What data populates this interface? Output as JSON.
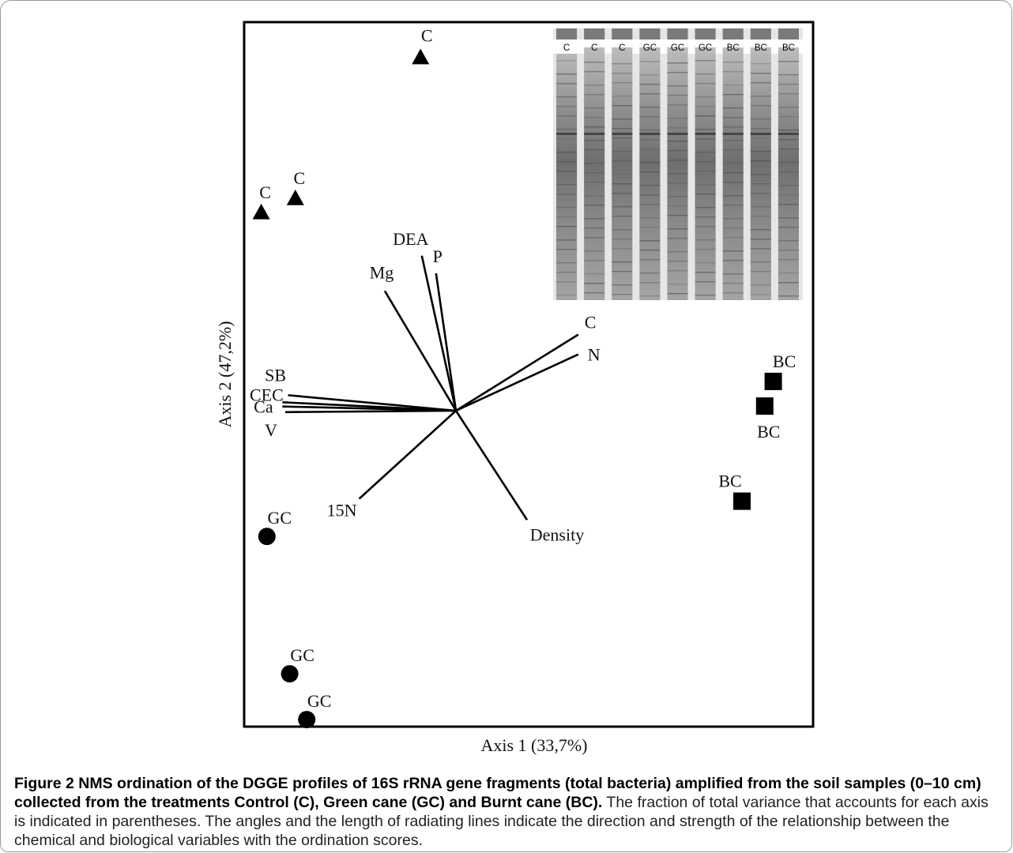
{
  "chart_data": {
    "type": "scatter",
    "xlabel": "Axis 1 (33,7%)",
    "ylabel": "Axis 2 (47,2%)",
    "points": [
      {
        "group": "C",
        "label": "C",
        "marker": "triangle",
        "x": 0.31,
        "y": 0.95
      },
      {
        "group": "C",
        "label": "C",
        "marker": "triangle",
        "x": 0.09,
        "y": 0.75
      },
      {
        "group": "C",
        "label": "C",
        "marker": "triangle",
        "x": 0.03,
        "y": 0.73
      },
      {
        "group": "BC",
        "label": "BC",
        "marker": "square",
        "x": 0.93,
        "y": 0.49
      },
      {
        "group": "BC",
        "label": "BC",
        "marker": "square",
        "x": 0.915,
        "y": 0.455
      },
      {
        "group": "BC",
        "label": "BC",
        "marker": "square",
        "x": 0.875,
        "y": 0.32
      },
      {
        "group": "GC",
        "label": "GC",
        "marker": "circle",
        "x": 0.04,
        "y": 0.27
      },
      {
        "group": "GC",
        "label": "GC",
        "marker": "circle",
        "x": 0.08,
        "y": 0.075
      },
      {
        "group": "GC",
        "label": "GC",
        "marker": "circle",
        "x": 0.11,
        "y": 0.01
      }
    ],
    "vectors": [
      {
        "name": "DEA",
        "dx": -0.06,
        "dy": 0.22
      },
      {
        "name": "P",
        "dx": -0.035,
        "dy": 0.195
      },
      {
        "name": "Mg",
        "dx": -0.125,
        "dy": 0.17
      },
      {
        "name": "C",
        "dx": 0.215,
        "dy": 0.108
      },
      {
        "name": "N",
        "dx": 0.215,
        "dy": 0.08
      },
      {
        "name": "SB",
        "dx": -0.295,
        "dy": 0.022
      },
      {
        "name": "CEC",
        "dx": -0.305,
        "dy": 0.012
      },
      {
        "name": "Ca",
        "dx": -0.305,
        "dy": 0.006
      },
      {
        "name": "V",
        "dx": -0.3,
        "dy": -0.002
      },
      {
        "name": "15N",
        "dx": -0.17,
        "dy": -0.125
      },
      {
        "name": "Density",
        "dx": 0.125,
        "dy": -0.155
      }
    ],
    "inset_gel": {
      "lanes": [
        "C",
        "C",
        "C",
        "GC",
        "GC",
        "GC",
        "BC",
        "BC",
        "BC"
      ]
    },
    "grid": false
  },
  "caption": {
    "label": "Figure 2",
    "title": "NMS ordination of the DGGE profiles of 16S rRNA gene fragments (total bacteria) amplified from the soil samples (0–10 cm) collected from the treatments Control (C), Green cane (GC) and Burnt cane (BC).",
    "body": "The fraction of total variance that accounts for each axis is indicated in parentheses. The angles and the length of radiating lines indicate the direction and strength of the relationship between the chemical and biological variables with the ordination scores."
  },
  "colors": {
    "marker": "#000000",
    "frame": "#000000",
    "caption_text": "#222222"
  }
}
